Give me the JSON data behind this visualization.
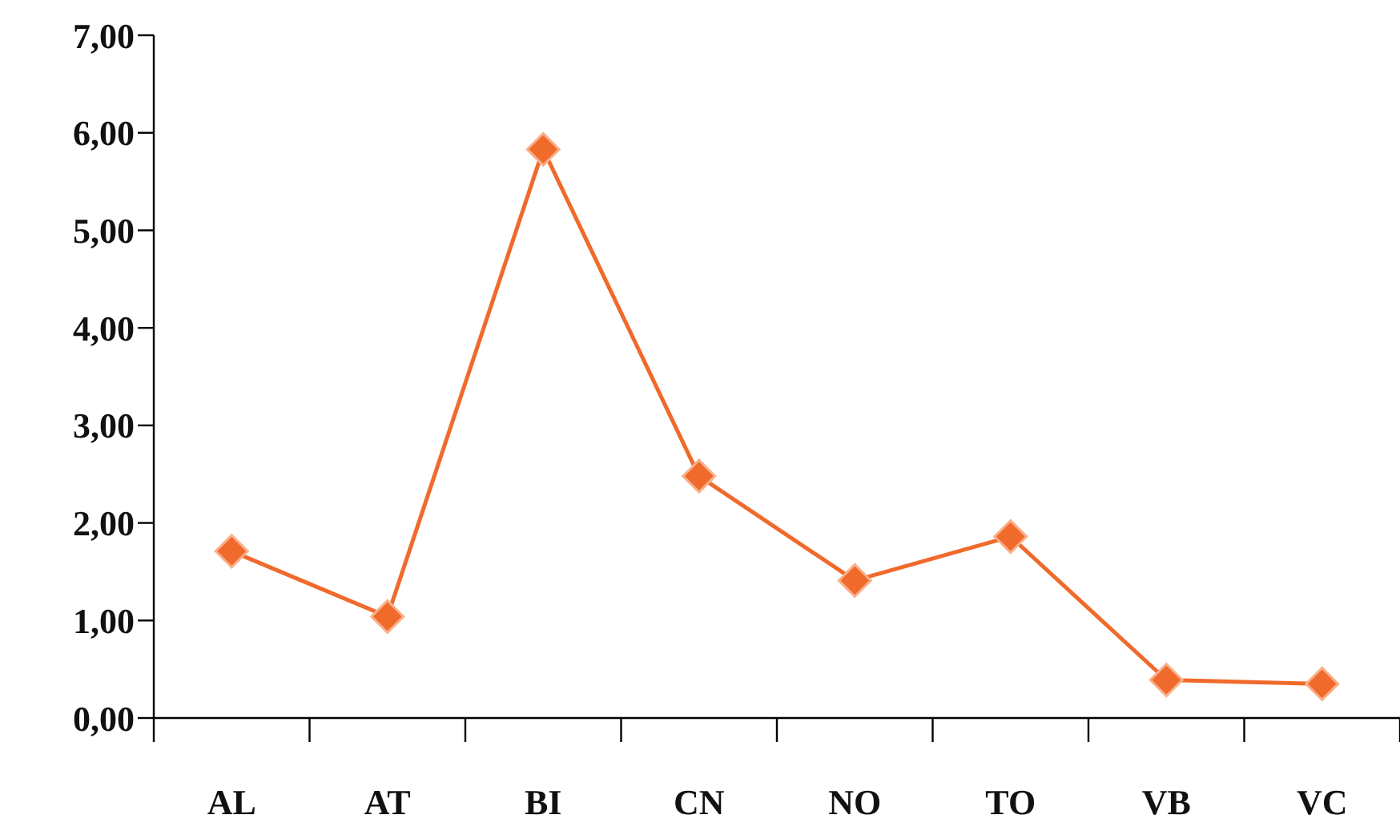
{
  "chart_data": {
    "type": "line",
    "categories": [
      "AL",
      "AT",
      "BI",
      "CN",
      "NO",
      "TO",
      "VB",
      "VC"
    ],
    "values": [
      1.71,
      1.04,
      5.83,
      2.48,
      1.41,
      1.86,
      0.39,
      0.35
    ],
    "color": "#f06a2c",
    "marker": "diamond",
    "ylim": [
      0,
      7
    ],
    "yticks": [
      {
        "value": 0,
        "label": "0,00"
      },
      {
        "value": 1,
        "label": "1,00"
      },
      {
        "value": 2,
        "label": "2,00"
      },
      {
        "value": 3,
        "label": "3,00"
      },
      {
        "value": 4,
        "label": "4,00"
      },
      {
        "value": 5,
        "label": "5,00"
      },
      {
        "value": 6,
        "label": "6,00"
      },
      {
        "value": 7,
        "label": "7,00"
      }
    ]
  }
}
